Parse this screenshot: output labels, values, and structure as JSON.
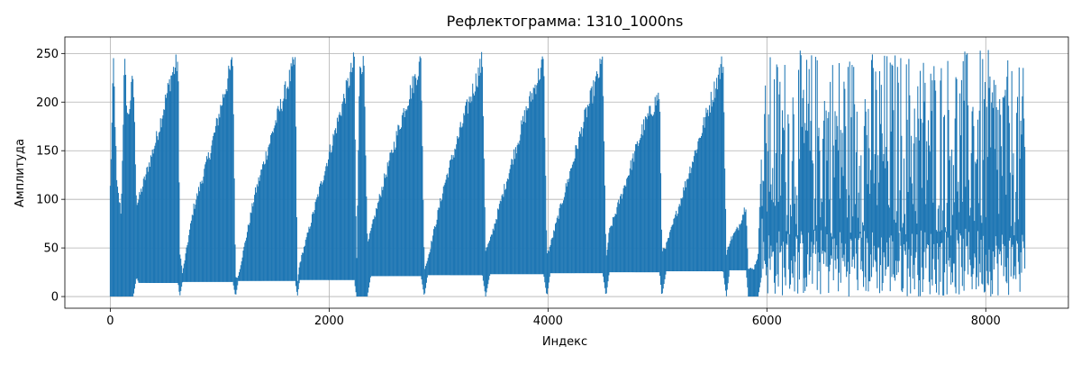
{
  "chart_data": {
    "type": "line",
    "title": "Рефлектограмма: 1310_1000ns",
    "xlabel": "Индекс",
    "ylabel": "Амплитуда",
    "xlim": [
      -415,
      8755
    ],
    "ylim": [
      -12,
      267
    ],
    "xticks": [
      0,
      2000,
      4000,
      6000,
      8000
    ],
    "xtick_labels": [
      "0",
      "2000",
      "4000",
      "6000",
      "8000"
    ],
    "yticks": [
      0,
      50,
      100,
      150,
      200,
      250
    ],
    "ytick_labels": [
      "0",
      "50",
      "100",
      "150",
      "200",
      "250"
    ],
    "grid": true,
    "legend": "none",
    "colors": {
      "series": "#1f77b4",
      "grid": "#b0b0b0",
      "background": "#ffffff"
    },
    "series": [
      {
        "x_range": [
          0,
          8360
        ],
        "envelope_points": [
          [
            0,
            0,
            118
          ],
          [
            30,
            0,
            255
          ],
          [
            60,
            0,
            120
          ],
          [
            100,
            0,
            90
          ],
          [
            130,
            0,
            255
          ],
          [
            160,
            0,
            190
          ],
          [
            210,
            0,
            240
          ],
          [
            240,
            20,
            100
          ],
          [
            260,
            14,
            105
          ],
          [
            420,
            14,
            170
          ],
          [
            560,
            14,
            240
          ],
          [
            620,
            14,
            255
          ],
          [
            635,
            0,
            50
          ],
          [
            660,
            15,
            25
          ],
          [
            760,
            15,
            95
          ],
          [
            920,
            15,
            160
          ],
          [
            1040,
            15,
            220
          ],
          [
            1120,
            15,
            255
          ],
          [
            1145,
            0,
            20
          ],
          [
            1170,
            16,
            22
          ],
          [
            1320,
            16,
            110
          ],
          [
            1500,
            16,
            185
          ],
          [
            1690,
            16,
            255
          ],
          [
            1710,
            0,
            15
          ],
          [
            1730,
            17,
            35
          ],
          [
            1900,
            17,
            110
          ],
          [
            2080,
            17,
            190
          ],
          [
            2230,
            17,
            255
          ],
          [
            2250,
            0,
            25
          ],
          [
            2280,
            0,
            255
          ],
          [
            2320,
            0,
            250
          ],
          [
            2350,
            0,
            55
          ],
          [
            2380,
            21,
            70
          ],
          [
            2500,
            21,
            125
          ],
          [
            2680,
            21,
            200
          ],
          [
            2840,
            21,
            255
          ],
          [
            2870,
            0,
            30
          ],
          [
            2900,
            22,
            40
          ],
          [
            3050,
            22,
            120
          ],
          [
            3250,
            22,
            200
          ],
          [
            3400,
            22,
            255
          ],
          [
            3430,
            0,
            50
          ],
          [
            3470,
            23,
            60
          ],
          [
            3620,
            23,
            125
          ],
          [
            3800,
            23,
            200
          ],
          [
            3960,
            23,
            255
          ],
          [
            3990,
            0,
            45
          ],
          [
            4020,
            24,
            55
          ],
          [
            4180,
            24,
            125
          ],
          [
            4340,
            24,
            195
          ],
          [
            4500,
            24,
            255
          ],
          [
            4530,
            0,
            40
          ],
          [
            4560,
            25,
            70
          ],
          [
            4700,
            25,
            120
          ],
          [
            4860,
            25,
            180
          ],
          [
            5020,
            25,
            220
          ],
          [
            5040,
            0,
            50
          ],
          [
            5080,
            26,
            55
          ],
          [
            5200,
            26,
            100
          ],
          [
            5380,
            26,
            170
          ],
          [
            5600,
            26,
            255
          ],
          [
            5630,
            0,
            45
          ],
          [
            5660,
            27,
            60
          ],
          [
            5740,
            27,
            75
          ],
          [
            5810,
            27,
            100
          ],
          [
            5830,
            0,
            30
          ],
          [
            5880,
            0,
            30
          ],
          [
            5920,
            0,
            45
          ],
          [
            5950,
            20,
            160
          ],
          [
            6000,
            0,
            250
          ],
          [
            6400,
            0,
            255
          ],
          [
            7000,
            0,
            255
          ],
          [
            7600,
            0,
            255
          ],
          [
            8000,
            0,
            255
          ],
          [
            8360,
            0,
            235
          ]
        ]
      }
    ]
  }
}
